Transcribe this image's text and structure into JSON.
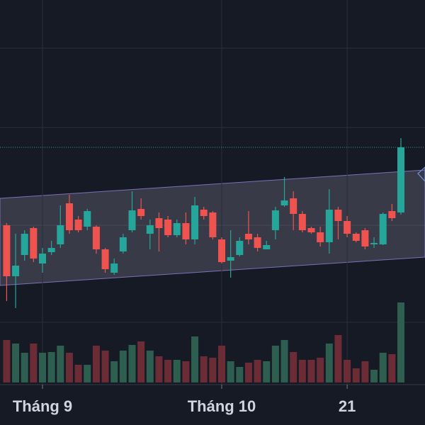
{
  "chart_data": {
    "type": "candlestick",
    "categories": [
      null,
      null,
      null,
      null,
      "Tháng 9",
      null,
      null,
      null,
      null,
      null,
      null,
      null,
      null,
      null,
      null,
      null,
      null,
      null,
      null,
      null,
      null,
      null,
      null,
      null,
      "Tháng 10",
      null,
      null,
      null,
      null,
      null,
      null,
      null,
      null,
      null,
      null,
      null,
      null,
      null,
      "21",
      null,
      null,
      null,
      null,
      null,
      null
    ],
    "open": [
      282,
      210,
      240,
      278,
      228,
      244,
      255,
      313,
      290,
      280,
      280,
      248,
      215,
      245,
      275,
      305,
      270,
      292,
      290,
      268,
      285,
      262,
      304,
      300,
      262,
      232,
      240,
      270,
      265,
      248,
      275,
      310,
      320,
      298,
      278,
      272,
      258,
      304,
      288,
      270,
      275,
      255,
      255,
      302,
      300
    ],
    "high": [
      285,
      270,
      275,
      280,
      250,
      260,
      310,
      325,
      295,
      305,
      282,
      250,
      235,
      270,
      330,
      320,
      290,
      300,
      295,
      290,
      300,
      322,
      308,
      302,
      265,
      275,
      265,
      302,
      270,
      260,
      308,
      350,
      330,
      302,
      280,
      280,
      333,
      308,
      295,
      272,
      278,
      265,
      300,
      312,
      405
    ],
    "low": [
      175,
      165,
      232,
      230,
      215,
      240,
      250,
      270,
      272,
      275,
      242,
      215,
      212,
      242,
      272,
      290,
      248,
      245,
      265,
      265,
      255,
      255,
      290,
      262,
      228,
      208,
      238,
      255,
      245,
      248,
      262,
      308,
      275,
      272,
      270,
      252,
      242,
      262,
      265,
      258,
      248,
      250,
      254,
      288,
      297
    ],
    "close": [
      210,
      225,
      270,
      235,
      242,
      250,
      282,
      275,
      275,
      302,
      248,
      220,
      228,
      265,
      303,
      295,
      282,
      278,
      268,
      285,
      262,
      310,
      295,
      265,
      230,
      237,
      260,
      262,
      250,
      254,
      303,
      317,
      298,
      275,
      272,
      258,
      304,
      288,
      270,
      260,
      252,
      257,
      298,
      292,
      392
    ],
    "volume": [
      60,
      55,
      42,
      55,
      42,
      43,
      52,
      42,
      25,
      25,
      52,
      45,
      30,
      45,
      53,
      58,
      45,
      37,
      32,
      32,
      30,
      65,
      37,
      35,
      52,
      30,
      22,
      28,
      32,
      30,
      52,
      60,
      43,
      32,
      32,
      35,
      55,
      67,
      32,
      20,
      30,
      18,
      42,
      40,
      113
    ],
    "up_color": "#26a69a",
    "down_color": "#ef5350",
    "up_volume_color": "#2e5e4f",
    "down_volume_color": "#6b2c36",
    "ylim": [
      0,
      600
    ]
  }
}
